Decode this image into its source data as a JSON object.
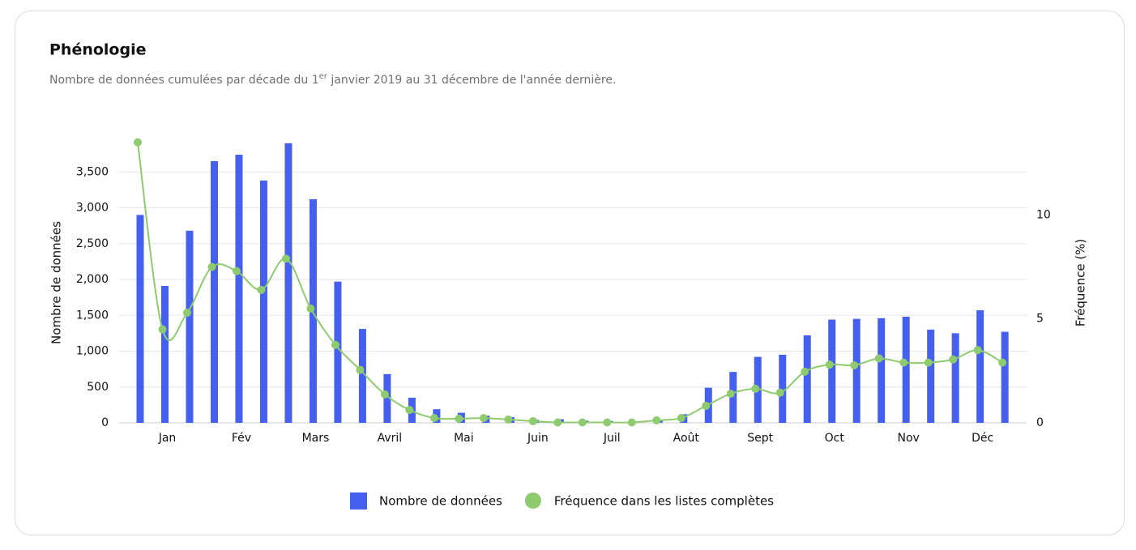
{
  "chart_data": {
    "type": "bar-line",
    "title": "Phénologie",
    "subtitle": [
      "Nombre de données cumulées par décade du 1",
      "er",
      " janvier 2019 au 31 décembre de l'année dernière."
    ],
    "y_label": "Nombre de données",
    "y2_label": "Fréquence (%)",
    "categories": [
      null,
      "Jan",
      null,
      null,
      "Fév",
      null,
      null,
      "Mars",
      null,
      null,
      "Avril",
      null,
      null,
      "Mai",
      null,
      null,
      "Juin",
      null,
      null,
      "Juil",
      null,
      null,
      "Août",
      null,
      null,
      "Sept",
      null,
      null,
      "Oct",
      null,
      null,
      "Nov",
      null,
      null,
      "Déc",
      null
    ],
    "series": [
      {
        "name": "Nombre de données",
        "type": "bar",
        "color": "#4560ef",
        "values": [
          2900,
          1910,
          2680,
          3650,
          3740,
          3380,
          3900,
          3120,
          1970,
          1310,
          680,
          350,
          190,
          140,
          100,
          80,
          40,
          50,
          30,
          25,
          20,
          40,
          120,
          490,
          710,
          920,
          950,
          1220,
          1440,
          1450,
          1460,
          1480,
          1300,
          1250,
          1570,
          1270
        ]
      },
      {
        "name": "Fréquence dans les listes complètes",
        "type": "line",
        "axis": "y2",
        "color": "#8ecb6f",
        "values": [
          13.5,
          4.5,
          5.3,
          7.5,
          7.3,
          6.4,
          7.9,
          5.5,
          3.75,
          2.55,
          1.37,
          0.62,
          0.23,
          0.2,
          0.23,
          0.16,
          0.08,
          0.02,
          0.02,
          0.02,
          0.02,
          0.12,
          0.23,
          0.82,
          1.4,
          1.64,
          1.45,
          2.46,
          2.8,
          2.77,
          3.1,
          2.9,
          2.9,
          3.05,
          3.5,
          2.9
        ]
      }
    ],
    "ylim": [
      0,
      4000
    ],
    "yticks": [
      0,
      500,
      {
        "value": 1000,
        "label": "1,000"
      },
      {
        "value": 1500,
        "label": "1,500"
      },
      {
        "value": 2000,
        "label": "2,000"
      },
      {
        "value": 2500,
        "label": "2,500"
      },
      {
        "value": 3000,
        "label": "3,000"
      },
      {
        "value": 3500,
        "label": "3,500"
      }
    ],
    "y2lim": [
      0,
      13.8
    ],
    "y2ticks": [
      0,
      5,
      10
    ],
    "grid": true,
    "legend": "bottom"
  }
}
